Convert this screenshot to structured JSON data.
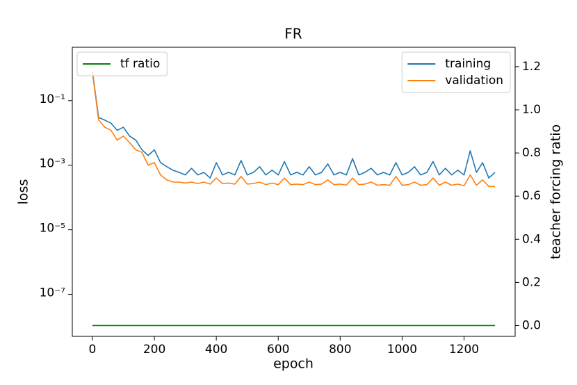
{
  "chart_data": {
    "type": "line",
    "title": "FR",
    "x_label": "epoch",
    "y_label": "loss",
    "y2_label": "teacher forcing ratio",
    "yscale": "log",
    "xlim": [
      -65,
      1365
    ],
    "xticks": [
      0,
      200,
      400,
      600,
      800,
      1000,
      1200
    ],
    "ylim": [
      5e-09,
      4.5
    ],
    "yticks": [
      {
        "value": 0.1,
        "label": "10⁻¹"
      },
      {
        "value": 0.001,
        "label": "10⁻³"
      },
      {
        "value": 1e-05,
        "label": "10⁻⁵"
      },
      {
        "value": 1e-07,
        "label": "10⁻⁷"
      }
    ],
    "y2lim": [
      -0.05,
      1.29
    ],
    "y2ticks": [
      {
        "value": 0,
        "label": "0.0"
      },
      0.2,
      0.4,
      0.6,
      0.8,
      {
        "value": 1,
        "label": "1.0"
      },
      1.2
    ],
    "legend": "upper right",
    "y2_legend": "upper left",
    "x": [
      0,
      20,
      40,
      60,
      80,
      100,
      120,
      140,
      160,
      180,
      200,
      220,
      240,
      260,
      280,
      300,
      320,
      340,
      360,
      380,
      400,
      420,
      440,
      460,
      480,
      500,
      520,
      540,
      560,
      580,
      600,
      620,
      640,
      660,
      680,
      700,
      720,
      740,
      760,
      780,
      800,
      820,
      840,
      860,
      880,
      900,
      920,
      940,
      960,
      980,
      1000,
      1020,
      1040,
      1060,
      1080,
      1100,
      1120,
      1140,
      1160,
      1180,
      1200,
      1220,
      1240,
      1260,
      1280,
      1300
    ],
    "series": [
      {
        "name": "training",
        "color": "#1f77b4",
        "values": [
          0.8,
          0.03,
          0.025,
          0.02,
          0.012,
          0.015,
          0.008,
          0.006,
          0.003,
          0.002,
          0.003,
          0.0012,
          0.0009,
          0.0007,
          0.0006,
          0.0005,
          0.0008,
          0.0005,
          0.0006,
          0.0004,
          0.0012,
          0.0005,
          0.0006,
          0.0005,
          0.0014,
          0.0005,
          0.0006,
          0.0009,
          0.0005,
          0.0007,
          0.0005,
          0.0013,
          0.0005,
          0.0006,
          0.0005,
          0.0009,
          0.0005,
          0.0006,
          0.0011,
          0.0005,
          0.0006,
          0.0005,
          0.0016,
          0.0005,
          0.0006,
          0.0008,
          0.0005,
          0.0006,
          0.0005,
          0.0012,
          0.0005,
          0.0006,
          0.0009,
          0.0005,
          0.0006,
          0.0013,
          0.0005,
          0.0008,
          0.0005,
          0.0007,
          0.0005,
          0.0028,
          0.0006,
          0.0012,
          0.0004,
          0.0006
        ]
      },
      {
        "name": "validation",
        "color": "#ff7f0e",
        "values": [
          0.75,
          0.025,
          0.015,
          0.012,
          0.006,
          0.008,
          0.005,
          0.003,
          0.0025,
          0.001,
          0.0012,
          0.0005,
          0.00035,
          0.0003,
          0.0003,
          0.00028,
          0.0003,
          0.00027,
          0.0003,
          0.00026,
          0.0004,
          0.00027,
          0.00028,
          0.00026,
          0.00045,
          0.00026,
          0.00027,
          0.0003,
          0.00025,
          0.00028,
          0.00025,
          0.0004,
          0.00025,
          0.00026,
          0.00025,
          0.0003,
          0.00025,
          0.00026,
          0.00035,
          0.00025,
          0.00026,
          0.00024,
          0.0004,
          0.00025,
          0.00026,
          0.0003,
          0.00024,
          0.00025,
          0.00024,
          0.00045,
          0.00024,
          0.00025,
          0.0003,
          0.00024,
          0.00025,
          0.0004,
          0.00024,
          0.0003,
          0.00024,
          0.00026,
          0.00023,
          0.0005,
          0.00024,
          0.00035,
          0.00022,
          0.00022
        ]
      },
      {
        "name": "tf ratio",
        "color": "#008000",
        "axis": "y2",
        "x": [
          0,
          1300
        ],
        "values": [
          0,
          0
        ]
      }
    ]
  }
}
